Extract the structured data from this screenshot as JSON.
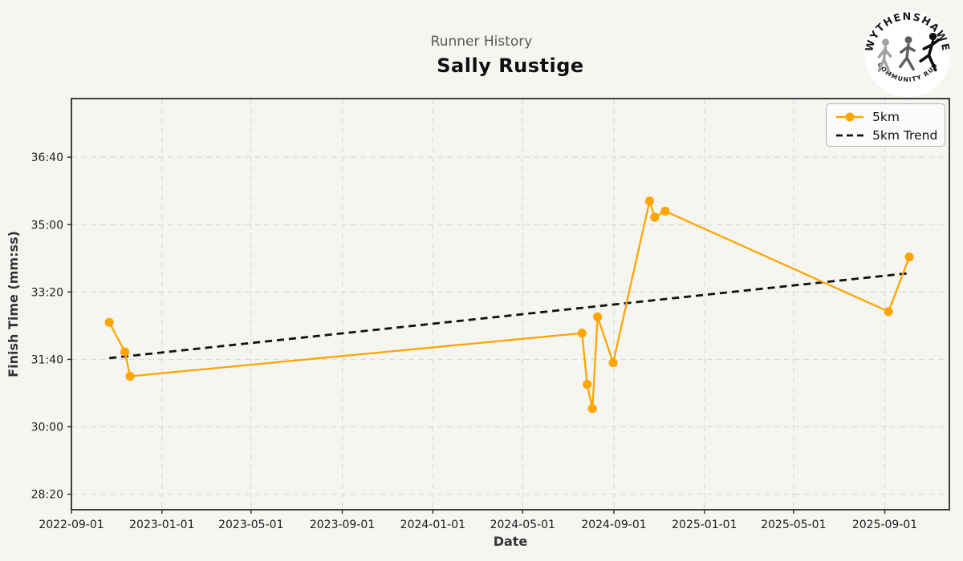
{
  "header": {
    "subtitle": "Runner History",
    "title": "Sally Rustige"
  },
  "logo": {
    "top_text": "WYTHENSHAWE",
    "bottom_text": "COMMUNITY RUN"
  },
  "colors": {
    "series": "#FFA500",
    "trend": "#111111",
    "background": "#f5f5f2",
    "grid": "#d9d9d9",
    "spine": "#2b2b2b"
  },
  "chart_data": {
    "type": "line",
    "title": "Sally Rustige",
    "subtitle": "Runner History",
    "xlabel": "Date",
    "ylabel": "Finish Time (mm:ss)",
    "grid": true,
    "legend_position": "upper right",
    "x_ticks": [
      "2022-09-01",
      "2023-01-01",
      "2023-05-01",
      "2023-09-01",
      "2024-01-01",
      "2024-05-01",
      "2024-09-01",
      "2025-01-01",
      "2025-05-01",
      "2025-09-01"
    ],
    "y_ticks": [
      "28:20",
      "30:00",
      "31:40",
      "33:20",
      "35:00",
      "36:40"
    ],
    "xlim": [
      "2022-09-01",
      "2025-11-27"
    ],
    "ylim": [
      "27:57",
      "38:07"
    ],
    "series": [
      {
        "name": "5km",
        "color": "#FFA500",
        "style": "solid",
        "markers": true,
        "points": [
          [
            "2022-10-22",
            "32:35"
          ],
          [
            "2022-11-12",
            "31:51"
          ],
          [
            "2022-11-19",
            "31:15"
          ],
          [
            "2024-07-20",
            "32:19"
          ],
          [
            "2024-07-27",
            "31:03"
          ],
          [
            "2024-08-03",
            "30:27"
          ],
          [
            "2024-08-10",
            "32:43"
          ],
          [
            "2024-08-31",
            "31:35"
          ],
          [
            "2024-10-19",
            "35:35"
          ],
          [
            "2024-10-26",
            "35:11"
          ],
          [
            "2024-11-09",
            "35:20"
          ],
          [
            "2025-09-06",
            "32:51"
          ],
          [
            "2025-10-04",
            "34:12"
          ]
        ]
      },
      {
        "name": "5km Trend",
        "color": "#111111",
        "style": "dashed",
        "markers": false,
        "points": [
          [
            "2022-10-22",
            "31:42"
          ],
          [
            "2025-10-04",
            "33:48"
          ]
        ]
      }
    ]
  }
}
